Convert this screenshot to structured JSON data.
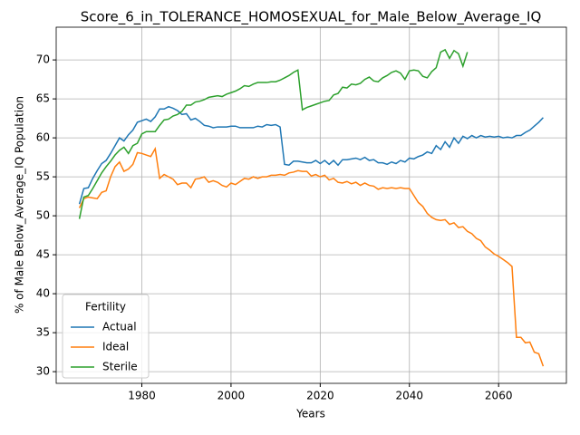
{
  "chart_data": {
    "type": "line",
    "title": "Score_6_in_TOLERANCE_HOMOSEXUAL_for_Male_Below_Average_IQ",
    "x_label": "Years",
    "y_label": "% of Male Below_Average_IQ Population",
    "legend_title": "Fertility",
    "legend": "lower left",
    "grid": true,
    "xlim": [
      1960.8,
      2075.2
    ],
    "ylim": [
      28.5,
      74.2
    ],
    "xticks": [
      1980,
      2000,
      2020,
      2040,
      2060
    ],
    "yticks": [
      30,
      35,
      40,
      45,
      50,
      55,
      60,
      65,
      70
    ],
    "x": [
      1966,
      1967,
      1968,
      1969,
      1970,
      1971,
      1972,
      1973,
      1974,
      1975,
      1976,
      1977,
      1978,
      1979,
      1980,
      1981,
      1982,
      1983,
      1984,
      1985,
      1986,
      1987,
      1988,
      1989,
      1990,
      1991,
      1992,
      1993,
      1994,
      1995,
      1996,
      1997,
      1998,
      1999,
      2000,
      2001,
      2002,
      2003,
      2004,
      2005,
      2006,
      2007,
      2008,
      2009,
      2010,
      2011,
      2012,
      2013,
      2014,
      2015,
      2016,
      2017,
      2018,
      2019,
      2020,
      2021,
      2022,
      2023,
      2024,
      2025,
      2026,
      2027,
      2028,
      2029,
      2030,
      2031,
      2032,
      2033,
      2034,
      2035,
      2036,
      2037,
      2038,
      2039,
      2040,
      2041,
      2042,
      2043,
      2044,
      2045,
      2046,
      2047,
      2048,
      2049,
      2050,
      2051,
      2052,
      2053,
      2054,
      2055,
      2056,
      2057,
      2058,
      2059,
      2060,
      2061,
      2062,
      2063,
      2064,
      2065,
      2066,
      2067,
      2068,
      2069,
      2070
    ],
    "series": [
      {
        "name": "Actual",
        "color": "#1f77b4",
        "values": [
          51.5,
          53.5,
          53.6,
          54.8,
          55.8,
          56.7,
          57.1,
          58.0,
          59.0,
          60.0,
          59.6,
          60.4,
          61.0,
          62.0,
          62.2,
          62.4,
          62.1,
          62.7,
          63.7,
          63.7,
          64.0,
          63.8,
          63.5,
          63.0,
          63.1,
          62.3,
          62.5,
          62.1,
          61.6,
          61.5,
          61.3,
          61.4,
          61.4,
          61.4,
          61.5,
          61.5,
          61.3,
          61.3,
          61.3,
          61.3,
          61.5,
          61.4,
          61.7,
          61.6,
          61.7,
          61.4,
          56.6,
          56.5,
          57.0,
          57.0,
          56.9,
          56.8,
          56.8,
          57.1,
          56.7,
          57.1,
          56.6,
          57.1,
          56.5,
          57.2,
          57.2,
          57.3,
          57.4,
          57.2,
          57.5,
          57.1,
          57.2,
          56.8,
          56.8,
          56.6,
          56.9,
          56.7,
          57.1,
          56.9,
          57.4,
          57.3,
          57.6,
          57.8,
          58.2,
          58.0,
          59.0,
          58.5,
          59.5,
          58.8,
          60.0,
          59.3,
          60.2,
          59.9,
          60.3,
          60.0,
          60.3,
          60.1,
          60.2,
          60.1,
          60.2,
          60.0,
          60.1,
          60.0,
          60.3,
          60.3,
          60.7,
          61.0,
          61.5,
          62.0,
          62.6
        ]
      },
      {
        "name": "Ideal",
        "color": "#ff7f0e",
        "values": [
          51.0,
          52.2,
          52.4,
          52.3,
          52.2,
          53.0,
          53.2,
          55.0,
          56.3,
          56.9,
          55.7,
          56.0,
          56.6,
          58.1,
          58.0,
          57.8,
          57.6,
          58.6,
          54.8,
          55.3,
          55.0,
          54.7,
          54.0,
          54.2,
          54.2,
          53.6,
          54.7,
          54.8,
          55.0,
          54.3,
          54.5,
          54.3,
          53.9,
          53.7,
          54.2,
          54.0,
          54.4,
          54.8,
          54.7,
          55.0,
          54.8,
          55.0,
          55.0,
          55.2,
          55.2,
          55.3,
          55.2,
          55.5,
          55.6,
          55.8,
          55.7,
          55.7,
          55.1,
          55.3,
          55.0,
          55.2,
          54.6,
          54.8,
          54.3,
          54.2,
          54.4,
          54.1,
          54.3,
          53.9,
          54.2,
          53.9,
          53.8,
          53.4,
          53.6,
          53.5,
          53.6,
          53.5,
          53.6,
          53.5,
          53.5,
          52.6,
          51.7,
          51.2,
          50.3,
          49.8,
          49.5,
          49.4,
          49.5,
          48.9,
          49.1,
          48.5,
          48.6,
          48.0,
          47.7,
          47.1,
          46.8,
          46.0,
          45.6,
          45.1,
          44.8,
          44.4,
          44.0,
          43.5,
          34.4,
          34.4,
          33.7,
          33.8,
          32.5,
          32.3,
          30.7
        ]
      },
      {
        "name": "Sterile",
        "color": "#2ca02c",
        "values": [
          49.6,
          52.4,
          52.6,
          53.5,
          54.5,
          55.5,
          56.3,
          57.0,
          57.8,
          58.4,
          58.8,
          58.0,
          59.0,
          59.3,
          60.5,
          60.8,
          60.8,
          60.8,
          61.6,
          62.3,
          62.4,
          62.8,
          63.0,
          63.4,
          64.2,
          64.2,
          64.6,
          64.7,
          64.9,
          65.2,
          65.3,
          65.4,
          65.3,
          65.6,
          65.8,
          66.0,
          66.3,
          66.7,
          66.6,
          66.9,
          67.1,
          67.1,
          67.1,
          67.2,
          67.2,
          67.4,
          67.7,
          68.0,
          68.4,
          68.7,
          63.6,
          63.9,
          64.1,
          64.3,
          64.5,
          64.7,
          64.8,
          65.5,
          65.7,
          66.5,
          66.4,
          66.9,
          66.8,
          67.0,
          67.5,
          67.8,
          67.3,
          67.2,
          67.7,
          68.0,
          68.4,
          68.6,
          68.3,
          67.5,
          68.6,
          68.7,
          68.6,
          67.9,
          67.7,
          68.5,
          69.0,
          71.0,
          71.3,
          70.2,
          71.2,
          70.8,
          69.2,
          71.0,
          null,
          null,
          null,
          null,
          null,
          null,
          null,
          null,
          null,
          null,
          null,
          null,
          null,
          null,
          null,
          null,
          null
        ]
      }
    ]
  }
}
